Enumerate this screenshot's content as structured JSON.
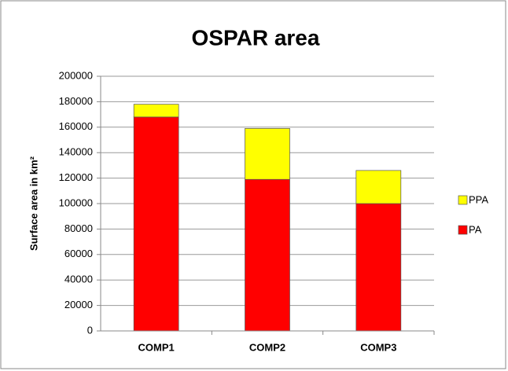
{
  "chart_data": {
    "type": "stacked_bar",
    "title": "OSPAR area",
    "y_label": "Surface area in km²",
    "categories": [
      "COMP1",
      "COMP2",
      "COMP3"
    ],
    "series": [
      {
        "name": "PA",
        "color": "#ff0000",
        "values": [
          168000,
          119000,
          100000
        ]
      },
      {
        "name": "PPA",
        "color": "#ffff00",
        "values": [
          10000,
          40000,
          26000
        ]
      }
    ],
    "ylim": [
      0,
      200000
    ],
    "yticks": [
      0,
      20000,
      40000,
      60000,
      80000,
      100000,
      120000,
      140000,
      160000,
      180000,
      200000
    ],
    "grid": true,
    "legend": "right"
  }
}
